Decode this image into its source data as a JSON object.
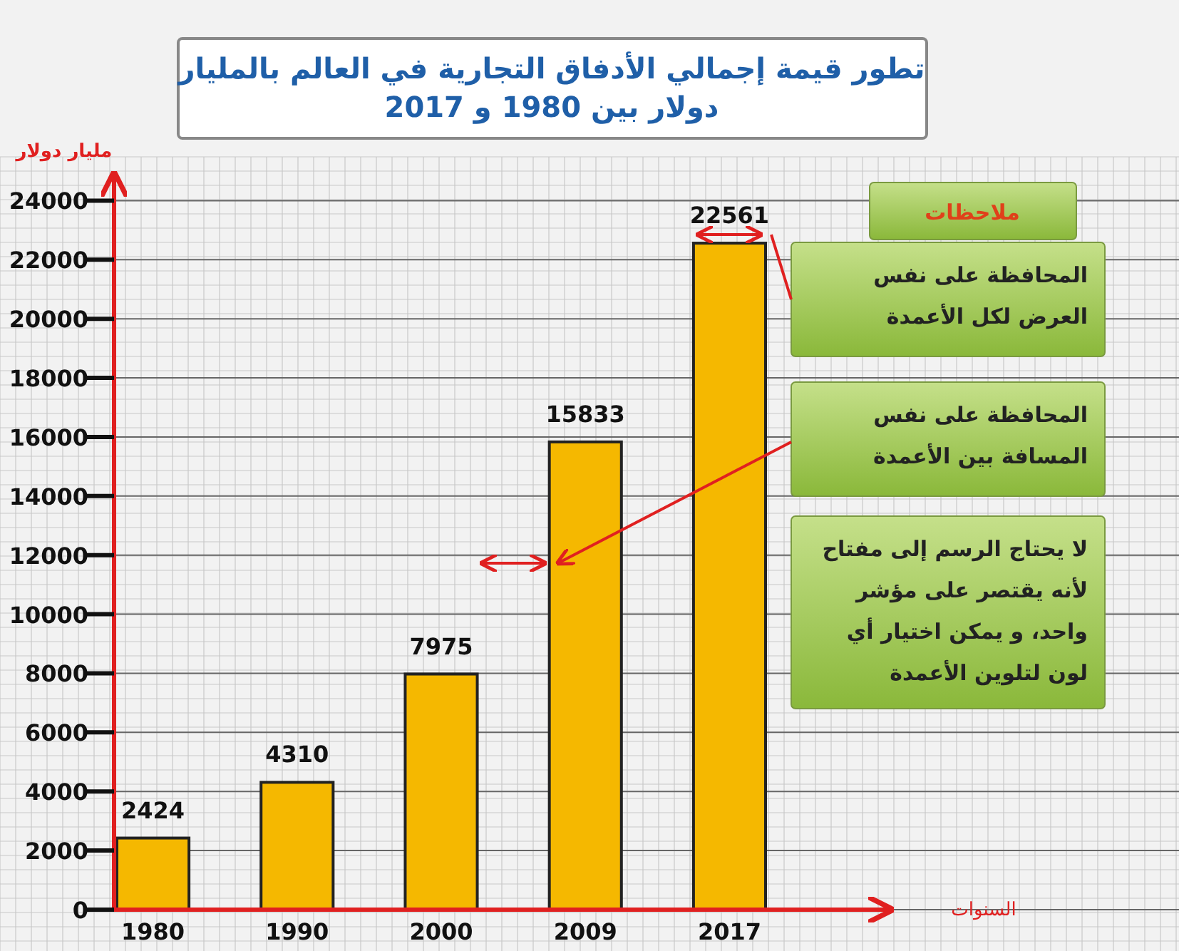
{
  "chart_data": {
    "type": "bar",
    "title": "تطور قيمة إجمالي الأدفاق التجارية في العالم بالمليار\nدولار بين 1980 و 2017",
    "xlabel": "السنوات",
    "ylabel": "مليار دولار",
    "categories": [
      "1980",
      "1990",
      "2000",
      "2009",
      "2017"
    ],
    "values": [
      2424,
      4310,
      7975,
      15833,
      22561
    ],
    "color": "#f5b800",
    "data_labels": true,
    "ylim": [
      0,
      25000
    ],
    "yticks": [
      0,
      2000,
      4000,
      6000,
      8000,
      10000,
      12000,
      14000,
      16000,
      18000,
      20000,
      22000,
      24000
    ],
    "grid": true,
    "annotations": [
      "ملاحظات",
      "المحافظة على نفس\nالعرض لكل الأعمدة",
      "المحافظة على نفس\nالمسافة بين الأعمدة",
      "لا يحتاج الرسم إلى مفتاح\nلأنه يقتصر على مؤشر\nواحد، و يمكن اختيار أي\nلون لتلوين الأعمدة"
    ]
  }
}
